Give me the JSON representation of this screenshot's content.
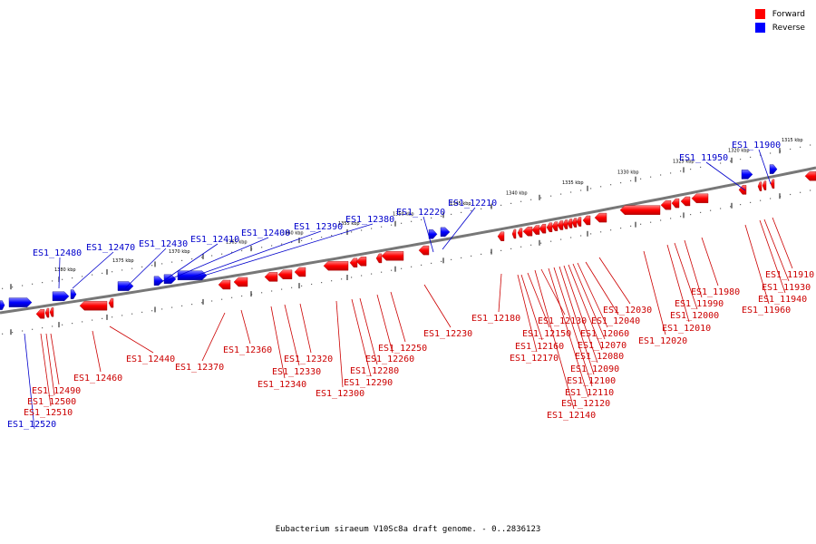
{
  "legend": {
    "forward": {
      "label": "Forward",
      "color": "#ff0000"
    },
    "reverse": {
      "label": "Reverse",
      "color": "#0000ff"
    }
  },
  "caption": "Eubacterium siraeum V10Sc8a draft genome. - 0..2836123",
  "scale_labels": [
    "1380 kbp",
    "1375 kbp",
    "1370 kbp",
    "1365 kbp",
    "1360 kbp",
    "1355 kbp",
    "1350 kbp",
    "1345 kbp",
    "1340 kbp",
    "1335 kbp",
    "1330 kbp",
    "1325 kbp",
    "1320 kbp",
    "1315 kbp"
  ],
  "genes": [
    {
      "id": "ES1_12480",
      "strand": "reverse"
    },
    {
      "id": "ES1_12470",
      "strand": "reverse"
    },
    {
      "id": "ES1_12430",
      "strand": "reverse"
    },
    {
      "id": "ES1_12410",
      "strand": "reverse"
    },
    {
      "id": "ES1_12400",
      "strand": "reverse"
    },
    {
      "id": "ES1_12390",
      "strand": "reverse"
    },
    {
      "id": "ES1_12380",
      "strand": "reverse"
    },
    {
      "id": "ES1_12220",
      "strand": "reverse"
    },
    {
      "id": "ES1_12210",
      "strand": "reverse"
    },
    {
      "id": "ES1_11950",
      "strand": "reverse"
    },
    {
      "id": "ES1_11900",
      "strand": "reverse"
    },
    {
      "id": "ES1_12520",
      "strand": "reverse"
    },
    {
      "id": "ES1_12510",
      "strand": "forward"
    },
    {
      "id": "ES1_12500",
      "strand": "forward"
    },
    {
      "id": "ES1_12490",
      "strand": "forward"
    },
    {
      "id": "ES1_12460",
      "strand": "forward"
    },
    {
      "id": "ES1_12440",
      "strand": "forward"
    },
    {
      "id": "ES1_12370",
      "strand": "forward"
    },
    {
      "id": "ES1_12360",
      "strand": "forward"
    },
    {
      "id": "ES1_12340",
      "strand": "forward"
    },
    {
      "id": "ES1_12330",
      "strand": "forward"
    },
    {
      "id": "ES1_12320",
      "strand": "forward"
    },
    {
      "id": "ES1_12300",
      "strand": "forward"
    },
    {
      "id": "ES1_12290",
      "strand": "forward"
    },
    {
      "id": "ES1_12280",
      "strand": "forward"
    },
    {
      "id": "ES1_12260",
      "strand": "forward"
    },
    {
      "id": "ES1_12250",
      "strand": "forward"
    },
    {
      "id": "ES1_12230",
      "strand": "forward"
    },
    {
      "id": "ES1_12180",
      "strand": "forward"
    },
    {
      "id": "ES1_12170",
      "strand": "forward"
    },
    {
      "id": "ES1_12160",
      "strand": "forward"
    },
    {
      "id": "ES1_12150",
      "strand": "forward"
    },
    {
      "id": "ES1_12140",
      "strand": "forward"
    },
    {
      "id": "ES1_12130",
      "strand": "forward"
    },
    {
      "id": "ES1_12120",
      "strand": "forward"
    },
    {
      "id": "ES1_12110",
      "strand": "forward"
    },
    {
      "id": "ES1_12100",
      "strand": "forward"
    },
    {
      "id": "ES1_12090",
      "strand": "forward"
    },
    {
      "id": "ES1_12080",
      "strand": "forward"
    },
    {
      "id": "ES1_12070",
      "strand": "forward"
    },
    {
      "id": "ES1_12060",
      "strand": "forward"
    },
    {
      "id": "ES1_12040",
      "strand": "forward"
    },
    {
      "id": "ES1_12030",
      "strand": "forward"
    },
    {
      "id": "ES1_12020",
      "strand": "forward"
    },
    {
      "id": "ES1_12010",
      "strand": "forward"
    },
    {
      "id": "ES1_12000",
      "strand": "forward"
    },
    {
      "id": "ES1_11990",
      "strand": "forward"
    },
    {
      "id": "ES1_11980",
      "strand": "forward"
    },
    {
      "id": "ES1_11960",
      "strand": "forward"
    },
    {
      "id": "ES1_11940",
      "strand": "forward"
    },
    {
      "id": "ES1_11930",
      "strand": "forward"
    },
    {
      "id": "ES1_11910",
      "strand": "forward"
    }
  ]
}
